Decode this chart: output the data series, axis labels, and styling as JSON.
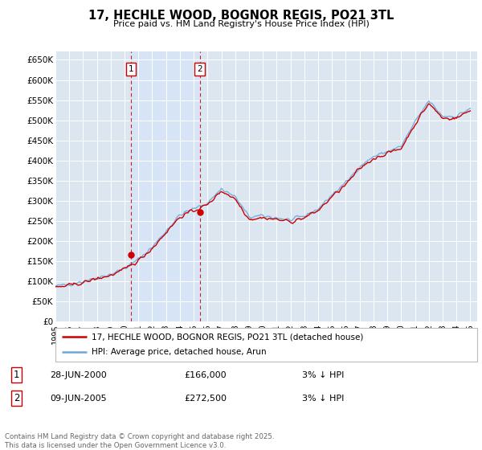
{
  "title": "17, HECHLE WOOD, BOGNOR REGIS, PO21 3TL",
  "subtitle": "Price paid vs. HM Land Registry's House Price Index (HPI)",
  "ylim": [
    0,
    670000
  ],
  "yticks": [
    0,
    50000,
    100000,
    150000,
    200000,
    250000,
    300000,
    350000,
    400000,
    450000,
    500000,
    550000,
    600000,
    650000
  ],
  "ytick_labels": [
    "£0",
    "£50K",
    "£100K",
    "£150K",
    "£200K",
    "£250K",
    "£300K",
    "£350K",
    "£400K",
    "£450K",
    "£500K",
    "£550K",
    "£600K",
    "£650K"
  ],
  "background_color": "#ffffff",
  "plot_bg_color": "#dce6f1",
  "grid_color": "#ffffff",
  "hpi_color": "#6fa8d8",
  "price_color": "#cc0000",
  "shade_color": "#d6e4f5",
  "sale1_x": 2000.46,
  "sale2_x": 2005.44,
  "sale1_dot_y": 166000,
  "sale2_dot_y": 272500,
  "legend_line1": "17, HECHLE WOOD, BOGNOR REGIS, PO21 3TL (detached house)",
  "legend_line2": "HPI: Average price, detached house, Arun",
  "table_row1": [
    "1",
    "28-JUN-2000",
    "£166,000",
    "3% ↓ HPI"
  ],
  "table_row2": [
    "2",
    "09-JUN-2005",
    "£272,500",
    "3% ↓ HPI"
  ],
  "footer": "Contains HM Land Registry data © Crown copyright and database right 2025.\nThis data is licensed under the Open Government Licence v3.0.",
  "xlim_start": 1995.0,
  "xlim_end": 2025.5
}
